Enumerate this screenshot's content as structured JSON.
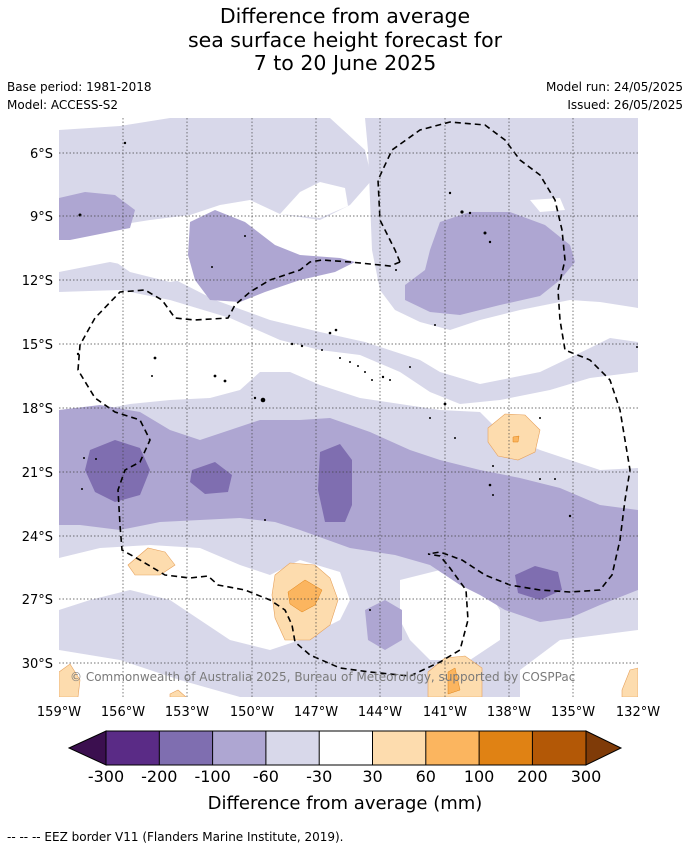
{
  "title_lines": [
    "Difference from average",
    "sea surface height forecast for",
    "7 to 20 June 2025"
  ],
  "meta": {
    "base_period": "Base period: 1981-2018",
    "model": "Model: ACCESS-S2",
    "model_run": "Model run: 24/05/2025",
    "issued": "Issued: 26/05/2025"
  },
  "map": {
    "lat_labels": [
      "6°S",
      "9°S",
      "12°S",
      "15°S",
      "18°S",
      "21°S",
      "24°S",
      "27°S",
      "30°S"
    ],
    "lon_labels": [
      "159°W",
      "156°W",
      "153°W",
      "150°W",
      "147°W",
      "144°W",
      "141°W",
      "138°W",
      "135°W",
      "132°W"
    ],
    "lat_range": [
      -32,
      -4.5
    ],
    "lon_range": [
      -159,
      -132
    ],
    "gridlines": true,
    "copyright": "© Commonwealth of Australia 2025, Bureau of Meteorology, supported by COSPPac"
  },
  "colorbar": {
    "ticks": [
      "-300",
      "-200",
      "-100",
      "-60",
      "-30",
      "30",
      "60",
      "100",
      "200",
      "300"
    ],
    "colors": [
      "#3b0f4f",
      "#5a2b86",
      "#7f6eb0",
      "#aea6d2",
      "#d8d8ea",
      "#ffffff",
      "#fddcae",
      "#fbb55f",
      "#e08214",
      "#b35806",
      "#7f3b08"
    ],
    "label": "Difference from average (mm)"
  },
  "footnote": "--  --  -- EEZ border V11 (Flanders Marine Institute, 2019)."
}
